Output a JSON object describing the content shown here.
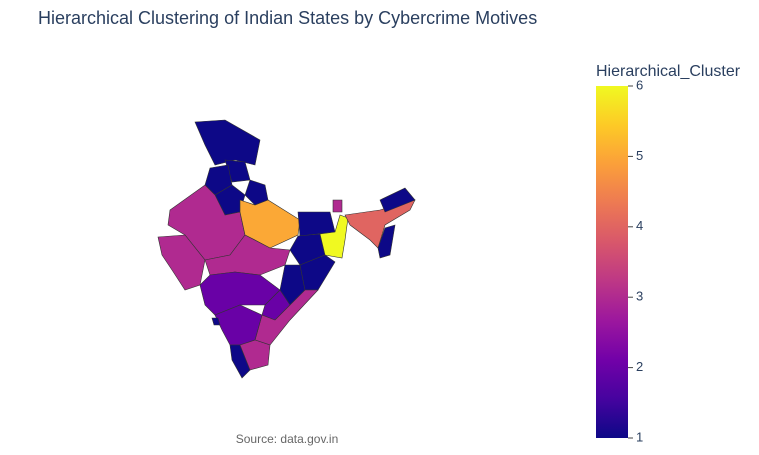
{
  "chart_data": {
    "type": "choropleth",
    "title": "Hierarchical Clustering of Indian States by Cybercrime Motives",
    "colorbar_title": "Hierarchical_Cluster",
    "source": "Source: data.gov.in",
    "values": [
      1,
      1,
      1,
      1,
      1,
      3,
      3,
      5,
      1,
      1,
      6,
      3,
      4,
      1,
      1,
      3,
      1,
      1,
      2,
      2,
      3,
      2,
      1,
      1,
      3
    ],
    "zlim": [
      1,
      6
    ],
    "zticks": [
      1,
      2,
      3,
      4,
      5,
      6
    ],
    "colorscale": [
      "#0d0887",
      "#46039f",
      "#7201a8",
      "#9c179e",
      "#bd3786",
      "#d8576b",
      "#ed7953",
      "#fb9f3a",
      "#fdca26",
      "#f0f921"
    ]
  }
}
